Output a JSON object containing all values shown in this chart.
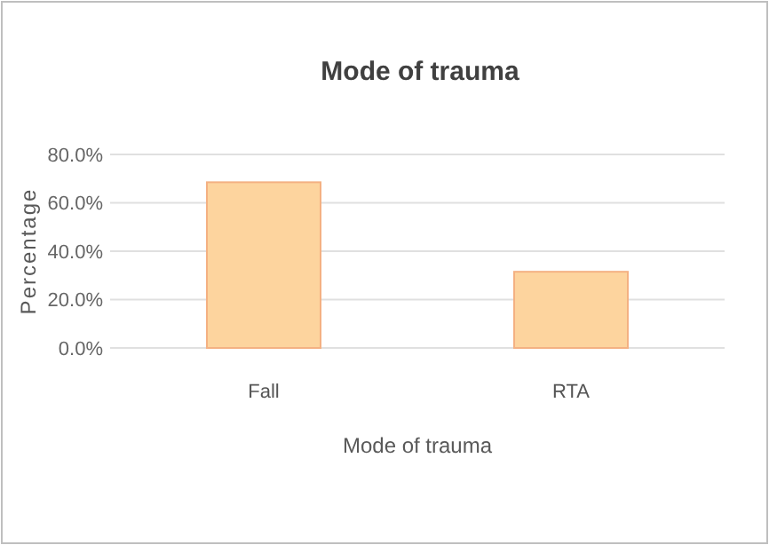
{
  "chart_data": {
    "type": "bar",
    "title": "Mode of trauma",
    "xlabel": "Mode of trauma",
    "ylabel": "Percentage",
    "categories": [
      "Fall",
      "RTA"
    ],
    "values": [
      68.5,
      31.5
    ],
    "color": "#fdd49e",
    "ylim": [
      0,
      80
    ],
    "yticks": [
      {
        "value": 0,
        "label": "0.0%"
      },
      {
        "value": 20,
        "label": "20.0%"
      },
      {
        "value": 40,
        "label": "40.0%"
      },
      {
        "value": 60,
        "label": "60.0%"
      },
      {
        "value": 80,
        "label": "80.0%"
      }
    ],
    "grid": "y"
  }
}
